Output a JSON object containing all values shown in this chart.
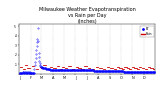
{
  "title_line1": "Milwaukee Weather Evapotranspiration",
  "title_line2": "vs Rain per Day",
  "title_line3": "(Inches)",
  "title_fontsize": 3.5,
  "background_color": "#ffffff",
  "et_color": "#0000ff",
  "rain_color": "#cc0000",
  "grid_color": "#aaaaaa",
  "xlim": [
    0,
    365
  ],
  "ylim": [
    0,
    0.52
  ],
  "ytick_vals": [
    0.1,
    0.2,
    0.3,
    0.4,
    0.5
  ],
  "ytick_labels": [
    ".1",
    ".2",
    ".3",
    ".4",
    ".5"
  ],
  "legend_et_label": "ET",
  "legend_rain_label": "Rain",
  "month_starts": [
    0,
    31,
    59,
    90,
    120,
    151,
    181,
    212,
    243,
    273,
    304,
    334
  ],
  "month_labels": [
    "J",
    "F",
    "M",
    "A",
    "M",
    "J",
    "J",
    "A",
    "S",
    "O",
    "N",
    "D"
  ],
  "et_spike_day": 50,
  "et_spike_val": 0.48,
  "rain_data_days": [
    5,
    12,
    18,
    25,
    38,
    48,
    58,
    62,
    68,
    75,
    85,
    95,
    105,
    112,
    118,
    125,
    135,
    145,
    155,
    162,
    170,
    178,
    188,
    198,
    208,
    218,
    228,
    238,
    248,
    258,
    265,
    272,
    278,
    285,
    292,
    298,
    305,
    312,
    318,
    325,
    332,
    340,
    348,
    355,
    362
  ],
  "rain_data_vals": [
    0.07,
    0.05,
    0.09,
    0.06,
    0.08,
    0.05,
    0.07,
    0.06,
    0.09,
    0.05,
    0.07,
    0.06,
    0.08,
    0.05,
    0.07,
    0.06,
    0.08,
    0.05,
    0.07,
    0.06,
    0.05,
    0.08,
    0.06,
    0.05,
    0.07,
    0.06,
    0.05,
    0.07,
    0.06,
    0.05,
    0.07,
    0.06,
    0.05,
    0.07,
    0.06,
    0.05,
    0.07,
    0.06,
    0.05,
    0.07,
    0.06,
    0.05,
    0.07,
    0.06,
    0.05
  ]
}
